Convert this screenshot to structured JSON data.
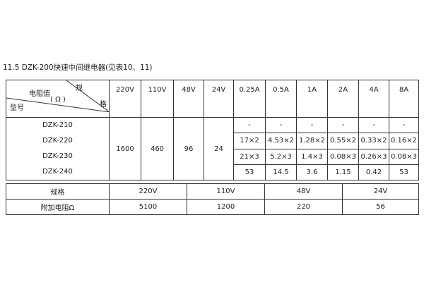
{
  "title": "11.5 DZK-200快速中间继电器(见表10、11)",
  "table1": {
    "corner": {
      "top": "规",
      "right": "格",
      "middle": "电阻值",
      "unit": "( Ω )",
      "bottom": "型号"
    },
    "voltage_headers": [
      "220V",
      "110V",
      "48V",
      "24V"
    ],
    "current_headers": [
      "0.25A",
      "0.5A",
      "1A",
      "2A",
      "4A",
      "8A"
    ],
    "models": [
      "DZK-210",
      "DZK-220",
      "DZK-230",
      "DZK-240"
    ],
    "voltage_values": [
      "1600",
      "460",
      "96",
      "24"
    ],
    "current_rows": [
      [
        "-",
        "-",
        "-",
        "-",
        "-",
        "-"
      ],
      [
        "17×2",
        "4.53×2",
        "1.28×2",
        "0.55×2",
        "0.33×2",
        "0.16×2"
      ],
      [
        "21×3",
        "5.2×3",
        "1.4×3",
        "0.08×3",
        "0.26×3",
        "0.08×3"
      ],
      [
        "53",
        "14.5",
        "3.6",
        "1.15",
        "0.42",
        "53"
      ]
    ]
  },
  "table2": {
    "row1_label": "规格",
    "row1": [
      "220V",
      "110V",
      "48V",
      "24V"
    ],
    "row2_label": "附加电阻Ω",
    "row2": [
      "5100",
      "1200",
      "220",
      "56"
    ]
  }
}
